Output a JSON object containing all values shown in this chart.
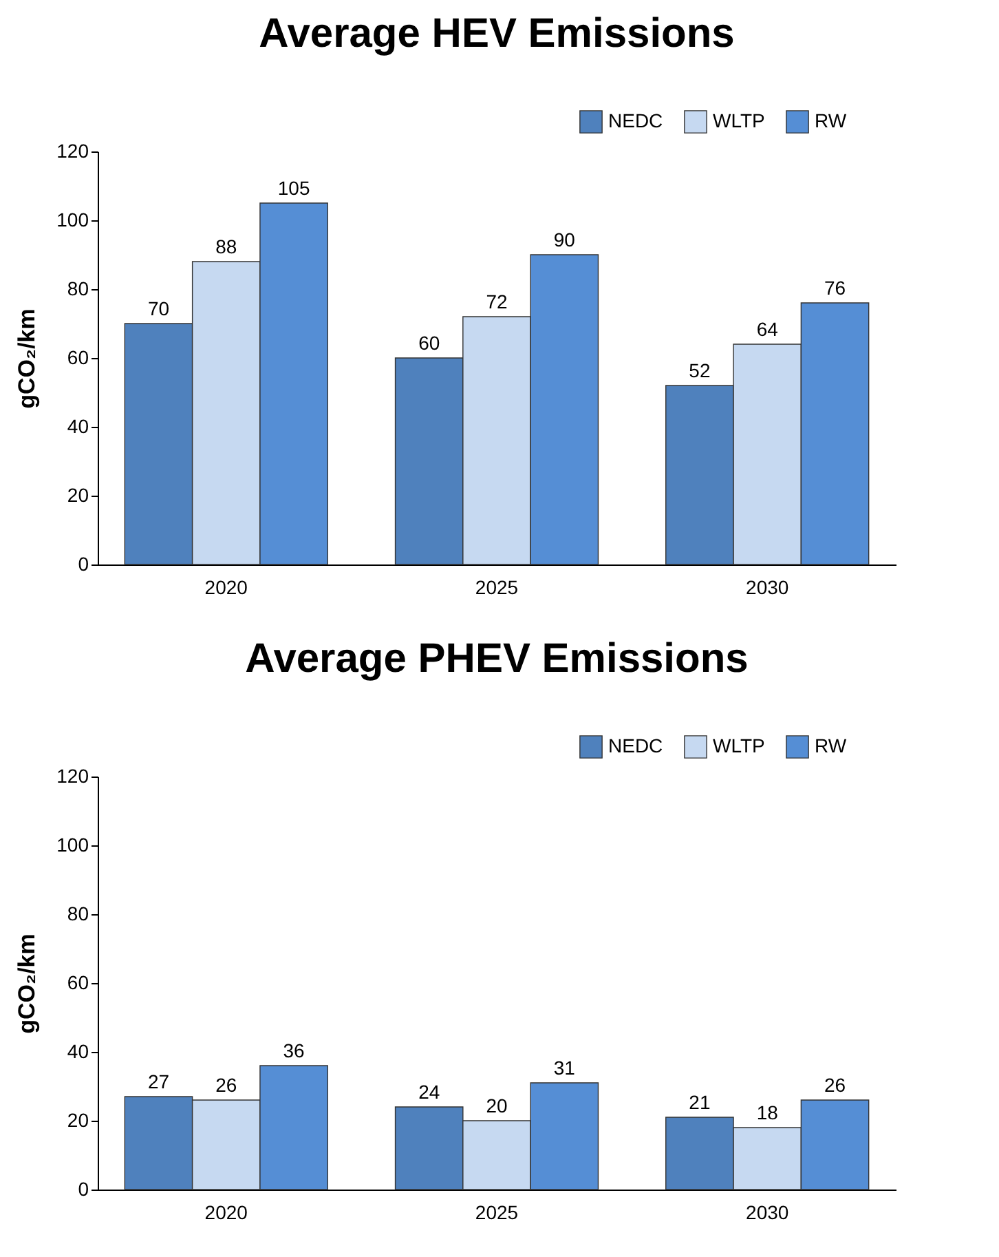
{
  "chart_data": [
    {
      "type": "bar",
      "title": "Average HEV Emissions",
      "ylabel": "gCO₂/km",
      "categories": [
        "2020",
        "2025",
        "2030"
      ],
      "series": [
        {
          "name": "NEDC",
          "color": "#4f81bd",
          "values": [
            70,
            60,
            52
          ]
        },
        {
          "name": "WLTP",
          "color": "#c6d9f1",
          "values": [
            88,
            72,
            64
          ]
        },
        {
          "name": "RW",
          "color": "#558ed5",
          "values": [
            105,
            90,
            76
          ]
        }
      ],
      "ylim": [
        0,
        120
      ],
      "yticks": [
        0,
        20,
        40,
        60,
        80,
        100,
        120
      ],
      "grid": false,
      "legend": "top right",
      "data_labels": true
    },
    {
      "type": "bar",
      "title": "Average PHEV Emissions",
      "ylabel": "gCO₂/km",
      "categories": [
        "2020",
        "2025",
        "2030"
      ],
      "series": [
        {
          "name": "NEDC",
          "color": "#4f81bd",
          "values": [
            27,
            24,
            21
          ]
        },
        {
          "name": "WLTP",
          "color": "#c6d9f1",
          "values": [
            26,
            20,
            18
          ]
        },
        {
          "name": "RW",
          "color": "#558ed5",
          "values": [
            36,
            31,
            26
          ]
        }
      ],
      "ylim": [
        0,
        120
      ],
      "yticks": [
        0,
        20,
        40,
        60,
        80,
        100,
        120
      ],
      "grid": false,
      "legend": "top right",
      "data_labels": true
    }
  ]
}
